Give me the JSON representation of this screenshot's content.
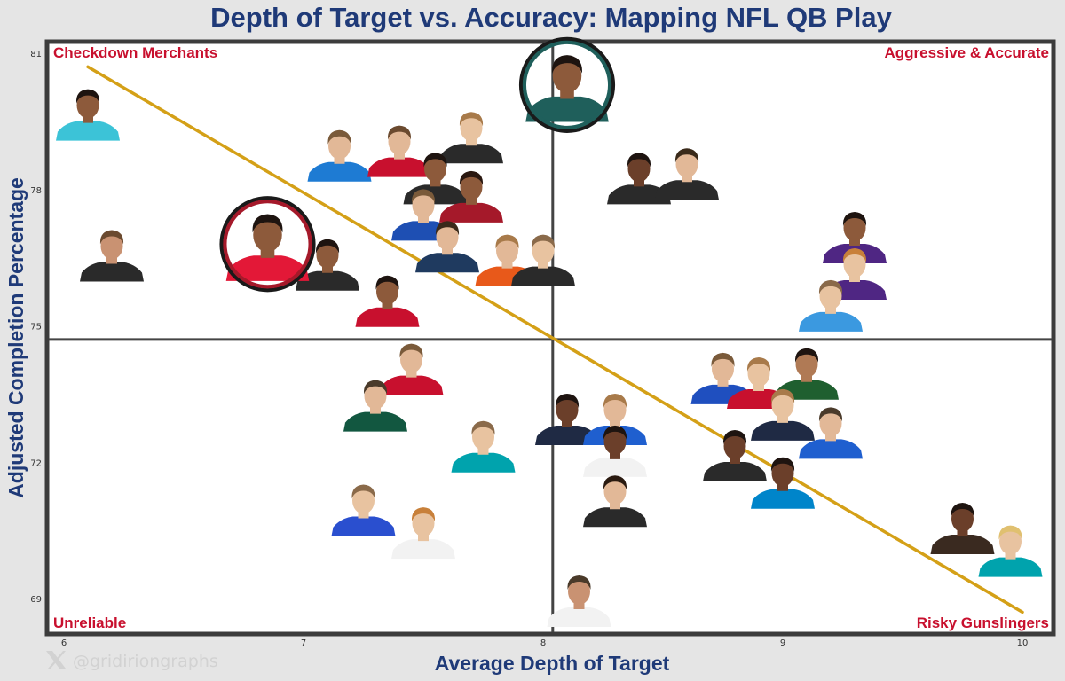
{
  "chart_data": {
    "type": "scatter",
    "title": "Depth of Target vs. Accuracy: Mapping NFL QB Play",
    "xlabel": "Average Depth of Target",
    "ylabel": "Adjusted Completion Percentage",
    "xlim": [
      5.9,
      10.1
    ],
    "ylim": [
      68.4,
      81.4
    ],
    "x_ticks": [
      6,
      7,
      8,
      9,
      10
    ],
    "y_ticks": [
      69,
      72,
      75,
      78,
      81
    ],
    "x_tick_labels": [
      "6",
      "7",
      "8",
      "9",
      "10"
    ],
    "y_tick_labels": [
      "69",
      "72",
      "75",
      "78",
      "81"
    ],
    "grid": false,
    "reference_lines": {
      "x": 8.04,
      "y": 74.7
    },
    "trend_line": {
      "x": [
        6.1,
        10.0
      ],
      "y": [
        80.7,
        68.7
      ],
      "color": "#d4a017"
    },
    "quadrant_labels": {
      "top_left": "Checkdown Merchants",
      "top_right": "Aggressive & Accurate",
      "bottom_left": "Unreliable",
      "bottom_right": "Risky Gunslingers"
    },
    "watermark": "@gridiriongraphs",
    "points": [
      {
        "x": 6.1,
        "y": 79.7,
        "jersey": "#3cc3d7",
        "skin": "#8d5a3b",
        "hair": "#1e1410"
      },
      {
        "x": 6.2,
        "y": 76.6,
        "jersey": "#2a2a2a",
        "skin": "#c99272",
        "hair": "#6b4a2f"
      },
      {
        "x": 7.15,
        "y": 78.8,
        "jersey": "#1e7bd3",
        "skin": "#e2b897",
        "hair": "#7a5a3a"
      },
      {
        "x": 7.4,
        "y": 78.9,
        "jersey": "#c8102e",
        "skin": "#e2b897",
        "hair": "#6b4a2f"
      },
      {
        "x": 7.7,
        "y": 79.2,
        "jersey": "#2a2a2a",
        "skin": "#e8c3a0",
        "hair": "#a87a4a"
      },
      {
        "x": 7.55,
        "y": 78.3,
        "jersey": "#2a2a2a",
        "skin": "#8d5a3b",
        "hair": "#1e1410"
      },
      {
        "x": 7.7,
        "y": 77.9,
        "jersey": "#a5192a",
        "skin": "#8d5a3b",
        "hair": "#2a1810"
      },
      {
        "x": 7.5,
        "y": 77.5,
        "jersey": "#1e4fb3",
        "skin": "#e2b897",
        "hair": "#7a5a3a"
      },
      {
        "x": 7.1,
        "y": 76.4,
        "jersey": "#2a2a2a",
        "skin": "#8d5a3b",
        "hair": "#1e1410"
      },
      {
        "x": 7.6,
        "y": 76.8,
        "jersey": "#1f3a5f",
        "skin": "#e2b897",
        "hair": "#3a2a1a"
      },
      {
        "x": 7.85,
        "y": 76.5,
        "jersey": "#e8591a",
        "skin": "#e2b897",
        "hair": "#a87a4a"
      },
      {
        "x": 8.0,
        "y": 76.5,
        "jersey": "#2a2a2a",
        "skin": "#e8c3a0",
        "hair": "#8a6a4a"
      },
      {
        "x": 7.35,
        "y": 75.6,
        "jersey": "#c8102e",
        "skin": "#8d5a3b",
        "hair": "#1e1410"
      },
      {
        "x": 8.1,
        "y": 80.3,
        "jersey": "#1f5f5b",
        "skin": "#8d5a3b",
        "hair": "#1e1410",
        "highlight": "#1f5f5b"
      },
      {
        "x": 6.85,
        "y": 76.8,
        "jersey": "#e31837",
        "skin": "#8d5a3b",
        "hair": "#1e1410",
        "highlight": "#a5192a"
      },
      {
        "x": 8.4,
        "y": 78.3,
        "jersey": "#2a2a2a",
        "skin": "#6b3f2a",
        "hair": "#1e1410"
      },
      {
        "x": 8.6,
        "y": 78.4,
        "jersey": "#2a2a2a",
        "skin": "#e2b897",
        "hair": "#3a2a1a"
      },
      {
        "x": 9.3,
        "y": 77.0,
        "jersey": "#4f2683",
        "skin": "#8d5a3b",
        "hair": "#1e1410"
      },
      {
        "x": 9.3,
        "y": 76.2,
        "jersey": "#4f2683",
        "skin": "#e8c3a0",
        "hair": "#c8803a"
      },
      {
        "x": 9.2,
        "y": 75.5,
        "jersey": "#3b99e0",
        "skin": "#e8c3a0",
        "hair": "#8a6a4a"
      },
      {
        "x": 7.45,
        "y": 74.1,
        "jersey": "#c8102e",
        "skin": "#e2b897",
        "hair": "#7a5a3a"
      },
      {
        "x": 7.3,
        "y": 73.3,
        "jersey": "#125740",
        "skin": "#e2b897",
        "hair": "#4a3a2a"
      },
      {
        "x": 7.75,
        "y": 72.4,
        "jersey": "#00a3ad",
        "skin": "#e8c3a0",
        "hair": "#8a6a4a"
      },
      {
        "x": 8.1,
        "y": 73.0,
        "jersey": "#1f2a44",
        "skin": "#6b3f2a",
        "hair": "#1e1410"
      },
      {
        "x": 8.3,
        "y": 73.0,
        "jersey": "#1f5fcf",
        "skin": "#e2b897",
        "hair": "#a87a4a"
      },
      {
        "x": 8.3,
        "y": 72.3,
        "jersey": "#f2f2f2",
        "skin": "#6b3f2a",
        "hair": "#1e1410"
      },
      {
        "x": 8.3,
        "y": 71.2,
        "jersey": "#2a2a2a",
        "skin": "#e2b897",
        "hair": "#2a1a10"
      },
      {
        "x": 8.75,
        "y": 73.9,
        "jersey": "#1f4fbf",
        "skin": "#e2b897",
        "hair": "#7a5a3a"
      },
      {
        "x": 8.9,
        "y": 73.8,
        "jersey": "#c8102e",
        "skin": "#e8c3a0",
        "hair": "#a87a4a"
      },
      {
        "x": 9.1,
        "y": 74.0,
        "jersey": "#1f5f2f",
        "skin": "#b07a55",
        "hair": "#1e1410"
      },
      {
        "x": 9.0,
        "y": 73.1,
        "jersey": "#1f2a44",
        "skin": "#e8c3a0",
        "hair": "#a87a4a"
      },
      {
        "x": 9.2,
        "y": 72.7,
        "jersey": "#1f5fcf",
        "skin": "#e2b897",
        "hair": "#4a3a2a"
      },
      {
        "x": 8.8,
        "y": 72.2,
        "jersey": "#2a2a2a",
        "skin": "#6b3f2a",
        "hair": "#1e1410"
      },
      {
        "x": 9.0,
        "y": 71.6,
        "jersey": "#0085ca",
        "skin": "#6b3f2a",
        "hair": "#1e1410"
      },
      {
        "x": 7.25,
        "y": 71.0,
        "jersey": "#2a4fcf",
        "skin": "#e8c3a0",
        "hair": "#8a6a4a"
      },
      {
        "x": 7.5,
        "y": 70.5,
        "jersey": "#f2f2f2",
        "skin": "#e8c3a0",
        "hair": "#c8803a"
      },
      {
        "x": 9.75,
        "y": 70.6,
        "jersey": "#3a2a20",
        "skin": "#6b3f2a",
        "hair": "#1e1410"
      },
      {
        "x": 9.95,
        "y": 70.1,
        "jersey": "#00a3ad",
        "skin": "#e8c3a0",
        "hair": "#e0c070"
      },
      {
        "x": 8.15,
        "y": 69.0,
        "jersey": "#f2f2f2",
        "skin": "#c99272",
        "hair": "#4a3a2a"
      }
    ]
  }
}
